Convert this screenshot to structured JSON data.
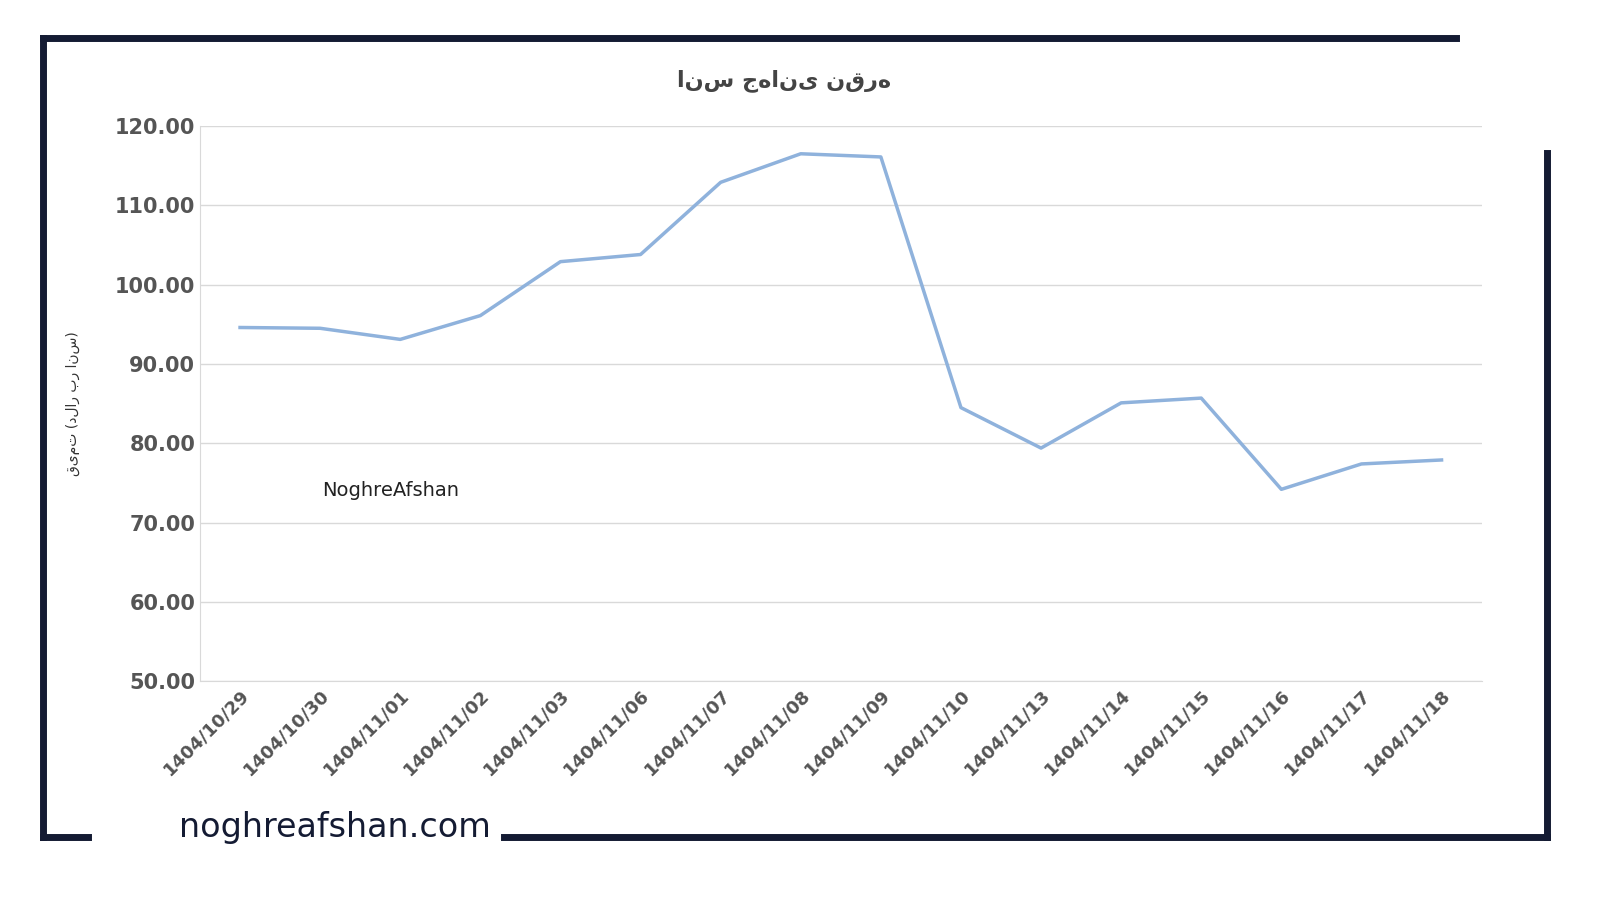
{
  "chart_data": {
    "type": "line",
    "title": "انس جهانی نقره",
    "y_label": "قیمت (دلار بر انس)",
    "annotations": [
      "NoghreAfshan",
      "noghreafshan.com"
    ],
    "categories": [
      "1404/10/29",
      "1404/10/30",
      "1404/11/01",
      "1404/11/02",
      "1404/11/03",
      "1404/11/06",
      "1404/11/07",
      "1404/11/08",
      "1404/11/09",
      "1404/11/10",
      "1404/11/13",
      "1404/11/14",
      "1404/11/15",
      "1404/11/16",
      "1404/11/17",
      "1404/11/18"
    ],
    "values": [
      94.6,
      94.5,
      93.1,
      96.1,
      102.9,
      103.8,
      112.9,
      116.5,
      116.1,
      84.5,
      79.4,
      85.1,
      85.7,
      74.2,
      77.4,
      77.9
    ],
    "color": "#8fb2dc",
    "ylim": [
      50,
      120
    ],
    "yticks": [
      {
        "value": 50,
        "label": "50.00"
      },
      {
        "value": 60,
        "label": "60.00"
      },
      {
        "value": 70,
        "label": "70.00"
      },
      {
        "value": 80,
        "label": "80.00"
      },
      {
        "value": 90,
        "label": "90.00"
      },
      {
        "value": 100,
        "label": "100.00"
      },
      {
        "value": 110,
        "label": "110.00"
      },
      {
        "value": 120,
        "label": "120.00"
      }
    ],
    "grid": true
  }
}
